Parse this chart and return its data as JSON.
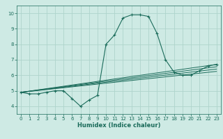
{
  "xlabel": "Humidex (Indice chaleur)",
  "background_color": "#ceeae4",
  "grid_color": "#aed4cc",
  "line_color": "#1a6b5a",
  "xlim": [
    -0.5,
    23.5
  ],
  "ylim": [
    3.5,
    10.5
  ],
  "xticks": [
    0,
    1,
    2,
    3,
    4,
    5,
    6,
    7,
    8,
    9,
    10,
    11,
    12,
    13,
    14,
    15,
    16,
    17,
    18,
    19,
    20,
    21,
    22,
    23
  ],
  "yticks": [
    4,
    5,
    6,
    7,
    8,
    9,
    10
  ],
  "main_line": {
    "x": [
      0,
      1,
      2,
      3,
      4,
      5,
      6,
      7,
      8,
      9,
      10,
      11,
      12,
      13,
      14,
      15,
      16,
      17,
      18,
      19,
      20,
      21,
      22,
      23
    ],
    "y": [
      4.9,
      4.8,
      4.8,
      4.9,
      5.0,
      5.0,
      4.5,
      4.0,
      4.4,
      4.7,
      8.0,
      8.6,
      9.7,
      9.9,
      9.9,
      9.8,
      8.7,
      7.0,
      6.2,
      6.0,
      6.0,
      6.3,
      6.6,
      6.7
    ]
  },
  "trend_lines": [
    {
      "x": [
        0,
        23
      ],
      "y": [
        4.9,
        6.7
      ]
    },
    {
      "x": [
        0,
        23
      ],
      "y": [
        4.9,
        6.55
      ]
    },
    {
      "x": [
        0,
        23
      ],
      "y": [
        4.9,
        6.4
      ]
    },
    {
      "x": [
        0,
        23
      ],
      "y": [
        4.9,
        6.25
      ]
    }
  ]
}
